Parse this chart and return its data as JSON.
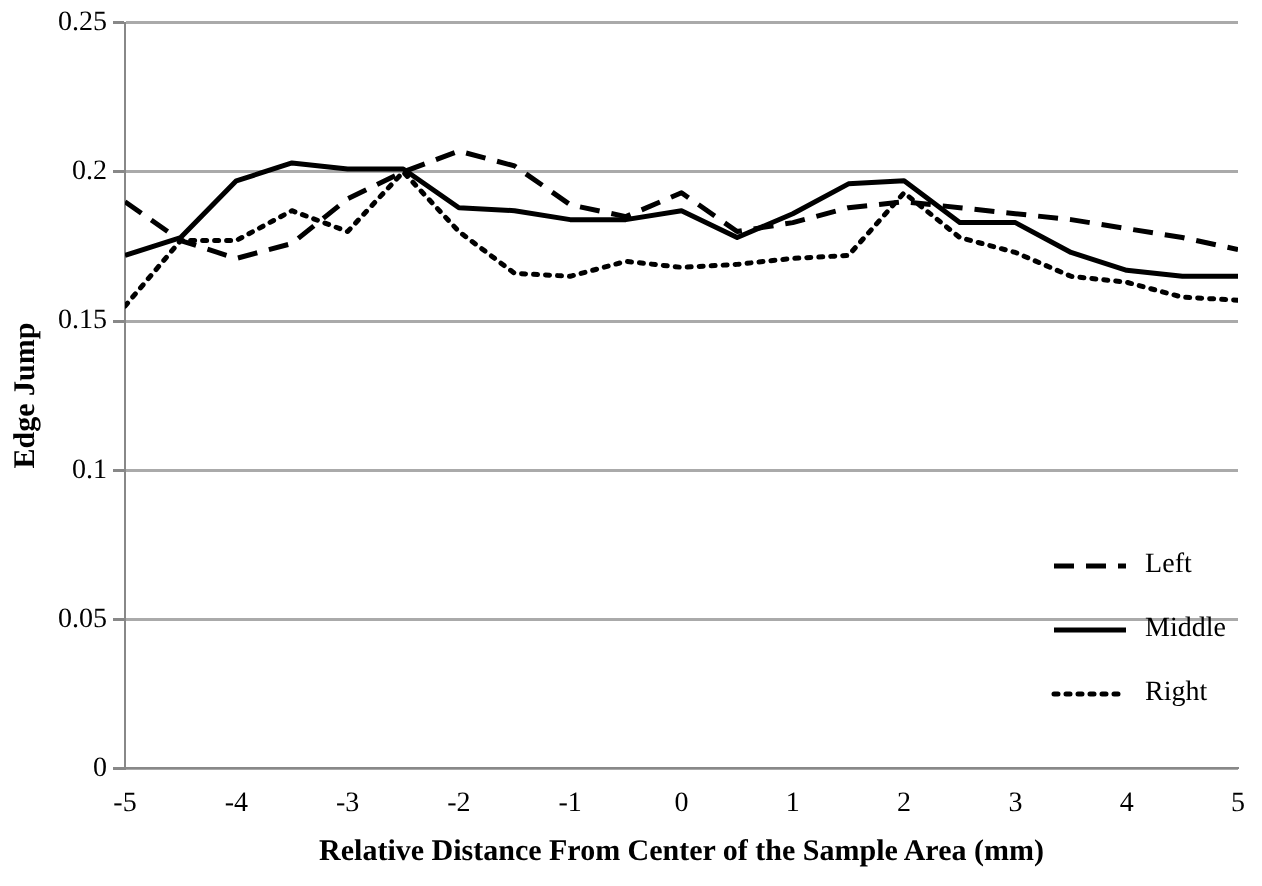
{
  "chart_data": {
    "type": "line",
    "xlabel": "Relative Distance From Center of the Sample Area (mm)",
    "ylabel": "Edge Jump",
    "x": [
      -5,
      -4.5,
      -4,
      -3.5,
      -3,
      -2.5,
      -2,
      -1.5,
      -1,
      -0.5,
      0,
      0.5,
      1,
      1.5,
      2,
      2.5,
      3,
      3.5,
      4,
      4.5,
      5
    ],
    "series": [
      {
        "name": "Left",
        "color": "#000000",
        "line_style": "dashed",
        "values": [
          0.19,
          0.177,
          0.171,
          0.176,
          0.191,
          0.2,
          0.207,
          0.202,
          0.189,
          0.185,
          0.193,
          0.18,
          0.183,
          0.188,
          0.19,
          0.188,
          0.186,
          0.184,
          0.181,
          0.178,
          0.174
        ]
      },
      {
        "name": "Middle",
        "color": "#000000",
        "line_style": "solid",
        "values": [
          0.172,
          0.178,
          0.197,
          0.203,
          0.201,
          0.201,
          0.188,
          0.187,
          0.184,
          0.184,
          0.187,
          0.178,
          0.186,
          0.196,
          0.197,
          0.183,
          0.183,
          0.173,
          0.167,
          0.165,
          0.165
        ]
      },
      {
        "name": "Right",
        "color": "#000000",
        "line_style": "dotted",
        "values": [
          0.155,
          0.177,
          0.177,
          0.187,
          0.18,
          0.2,
          0.18,
          0.166,
          0.165,
          0.17,
          0.168,
          0.169,
          0.171,
          0.172,
          0.193,
          0.178,
          0.173,
          0.165,
          0.163,
          0.158,
          0.157
        ]
      }
    ],
    "xlim": [
      -5,
      5
    ],
    "xticks": [
      -5,
      -4,
      -3,
      -2,
      -1,
      0,
      1,
      2,
      3,
      4,
      5
    ],
    "ylim": [
      0,
      0.25
    ],
    "yticks": [
      0,
      0.05,
      0.1,
      0.15,
      0.2,
      0.25
    ],
    "grid": "y",
    "legend": "bottom right",
    "marker": "none"
  }
}
